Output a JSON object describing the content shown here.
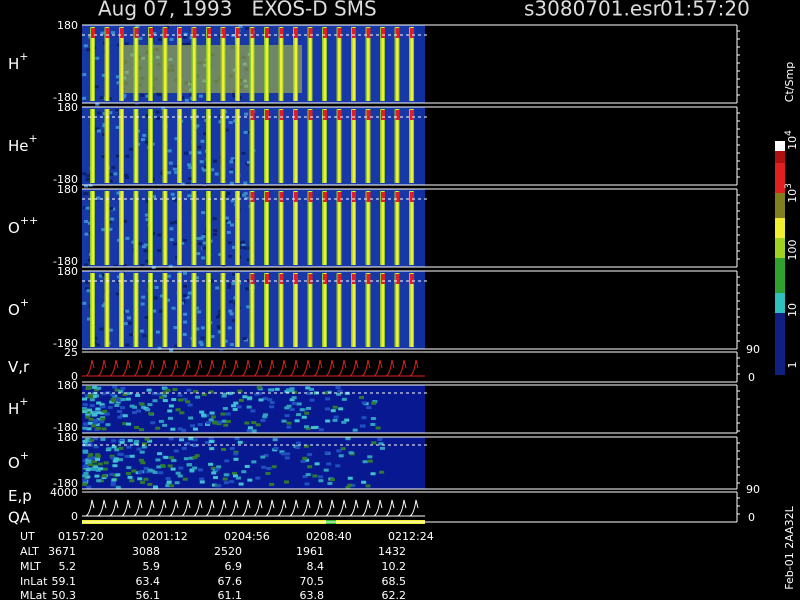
{
  "header": {
    "title": "Aug 07, 1993   EXOS-D SMS",
    "file": "s3080701.esr",
    "time": "01:57:20"
  },
  "panels": [
    {
      "label": "H",
      "charge": "+",
      "ticks": [
        "180",
        "-180"
      ]
    },
    {
      "label": "He",
      "charge": "+",
      "ticks": [
        "180",
        "-180"
      ]
    },
    {
      "label": "O",
      "charge": "++",
      "ticks": [
        "180",
        "-180"
      ]
    },
    {
      "label": "O",
      "charge": "+",
      "ticks": [
        "180",
        "-180"
      ]
    },
    {
      "label": "V,r",
      "ticks": [
        "25",
        "0"
      ],
      "right_ticks": [
        "90",
        "0"
      ]
    },
    {
      "label": "H",
      "charge": "+",
      "ticks": [
        "180",
        "-180"
      ]
    },
    {
      "label": "O",
      "charge": "+",
      "ticks": [
        "180",
        "-180"
      ]
    },
    {
      "label": "E,p",
      "label2": "QA",
      "ticks": [
        "4000",
        "0"
      ],
      "right_ticks": [
        "90",
        "0"
      ]
    }
  ],
  "colorbar": {
    "unit": "Ct/Smp",
    "labels": [
      {
        "base": "10",
        "exp": "4"
      },
      {
        "base": "10",
        "exp": "3"
      },
      {
        "base": "100"
      },
      {
        "base": "10"
      },
      {
        "base": "1"
      }
    ]
  },
  "footer": {
    "rows": [
      {
        "name": "UT",
        "values": [
          "0157:20",
          "0201:12",
          "0204:56",
          "0208:40",
          "0212:24"
        ]
      },
      {
        "name": "ALT",
        "values": [
          "3671",
          "3088",
          "2520",
          "1961",
          "1432"
        ]
      },
      {
        "name": "MLT",
        "values": [
          "5.2",
          "5.9",
          "6.9",
          "8.4",
          "10.2"
        ]
      },
      {
        "name": "InLat",
        "values": [
          "59.1",
          "63.4",
          "67.6",
          "70.5",
          "68.5"
        ]
      },
      {
        "name": "MLat",
        "values": [
          "50.3",
          "56.1",
          "61.1",
          "63.8",
          "62.2"
        ]
      }
    ]
  },
  "stamp": "Feb-01 2AA32L"
}
